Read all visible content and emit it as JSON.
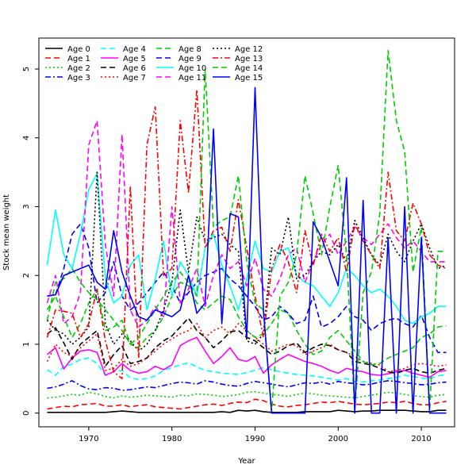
{
  "chart_data": {
    "type": "line",
    "title": "",
    "xlabel": "Year",
    "ylabel": "Stock mean weight",
    "xlim": [
      1964,
      2014
    ],
    "ylim": [
      -0.2,
      5.45
    ],
    "x_ticks": [
      1970,
      1980,
      1990,
      2000,
      2010
    ],
    "y_ticks": [
      0,
      1,
      2,
      3,
      4,
      5
    ],
    "grid": false,
    "legend_position": "top-left",
    "x": [
      1965,
      1966,
      1967,
      1968,
      1969,
      1970,
      1971,
      1972,
      1973,
      1974,
      1975,
      1976,
      1977,
      1978,
      1979,
      1980,
      1981,
      1982,
      1983,
      1984,
      1985,
      1986,
      1987,
      1988,
      1989,
      1990,
      1991,
      1992,
      1993,
      1994,
      1995,
      1996,
      1997,
      1998,
      1999,
      2000,
      2001,
      2002,
      2003,
      2004,
      2005,
      2006,
      2007,
      2008,
      2009,
      2010,
      2011,
      2012,
      2013
    ],
    "series": [
      {
        "name": "Age 0",
        "color": "#000000",
        "dash": "solid",
        "values": [
          0.01,
          0.01,
          0.01,
          0.01,
          0.01,
          0.01,
          0.01,
          0.01,
          0.02,
          0.03,
          0.02,
          0.01,
          0.01,
          0.01,
          0.01,
          0.01,
          0.01,
          0.01,
          0.01,
          0.01,
          0.01,
          0.02,
          0.01,
          0.04,
          0.03,
          0.04,
          0.02,
          0.01,
          0.01,
          0.01,
          0.01,
          0.02,
          0.02,
          0.02,
          0.02,
          0.04,
          0.03,
          0.02,
          0.03,
          0.03,
          0.04,
          0.04,
          0.04,
          0.04,
          0.03,
          0.02,
          0.02,
          0.04,
          0.04
        ]
      },
      {
        "name": "Age 1",
        "color": "#ff0000",
        "dash": "dashed",
        "values": [
          0.06,
          0.08,
          0.1,
          0.09,
          0.12,
          0.13,
          0.14,
          0.1,
          0.1,
          0.12,
          0.09,
          0.11,
          0.12,
          0.09,
          0.08,
          0.07,
          0.06,
          0.08,
          0.1,
          0.12,
          0.13,
          0.11,
          0.14,
          0.16,
          0.15,
          0.2,
          0.18,
          0.13,
          0.1,
          0.09,
          0.11,
          0.12,
          0.14,
          0.16,
          0.15,
          0.17,
          0.15,
          0.13,
          0.12,
          0.13,
          0.14,
          0.16,
          0.15,
          0.17,
          0.14,
          0.12,
          0.12,
          0.15,
          0.17
        ]
      },
      {
        "name": "Age 2",
        "color": "#00cd00",
        "dash": "dotted",
        "values": [
          0.22,
          0.23,
          0.25,
          0.27,
          0.26,
          0.3,
          0.28,
          0.24,
          0.22,
          0.25,
          0.23,
          0.24,
          0.26,
          0.25,
          0.24,
          0.23,
          0.26,
          0.25,
          0.28,
          0.27,
          0.26,
          0.24,
          0.25,
          0.27,
          0.3,
          0.31,
          0.29,
          0.27,
          0.26,
          0.24,
          0.27,
          0.29,
          0.28,
          0.26,
          0.25,
          0.24,
          0.23,
          0.22,
          0.24,
          0.26,
          0.28,
          0.3,
          0.29,
          0.27,
          0.25,
          0.24,
          0.23,
          0.26,
          0.27
        ]
      },
      {
        "name": "Age 3",
        "color": "#0000ff",
        "dash": "dashdot",
        "values": [
          0.36,
          0.38,
          0.42,
          0.47,
          0.4,
          0.35,
          0.34,
          0.37,
          0.36,
          0.33,
          0.34,
          0.36,
          0.38,
          0.37,
          0.4,
          0.43,
          0.45,
          0.44,
          0.42,
          0.47,
          0.45,
          0.42,
          0.4,
          0.39,
          0.43,
          0.46,
          0.44,
          0.42,
          0.4,
          0.38,
          0.41,
          0.44,
          0.43,
          0.45,
          0.42,
          0.46,
          0.44,
          0.43,
          0.41,
          0.42,
          0.45,
          0.47,
          0.46,
          0.44,
          0.43,
          0.41,
          0.42,
          0.44,
          0.45
        ]
      },
      {
        "name": "Age 4",
        "color": "#00ffff",
        "dash": "dashed",
        "values": [
          0.63,
          0.55,
          0.68,
          0.71,
          0.78,
          0.8,
          0.72,
          0.55,
          0.6,
          0.62,
          0.51,
          0.49,
          0.5,
          0.54,
          0.62,
          0.66,
          0.7,
          0.73,
          0.67,
          0.62,
          0.6,
          0.58,
          0.57,
          0.56,
          0.59,
          0.62,
          0.66,
          0.63,
          0.6,
          0.58,
          0.56,
          0.55,
          0.54,
          0.52,
          0.5,
          0.48,
          0.5,
          0.46,
          0.45,
          0.47,
          0.48,
          0.5,
          0.52,
          0.55,
          0.53,
          0.51,
          0.5,
          0.54,
          0.56
        ]
      },
      {
        "name": "Age 5",
        "color": "#ff00ff",
        "dash": "solid",
        "values": [
          0.85,
          0.95,
          0.64,
          0.8,
          0.9,
          0.92,
          0.88,
          0.55,
          0.6,
          0.72,
          0.62,
          0.58,
          0.6,
          0.68,
          0.63,
          0.7,
          0.98,
          1.05,
          1.1,
          0.9,
          0.72,
          0.82,
          0.95,
          0.78,
          0.75,
          0.82,
          0.58,
          0.7,
          0.78,
          0.85,
          0.8,
          0.75,
          0.72,
          0.68,
          0.62,
          0.58,
          0.65,
          0.62,
          0.6,
          0.56,
          0.55,
          0.57,
          0.6,
          0.62,
          0.58,
          0.55,
          0.52,
          0.6,
          0.62
        ]
      },
      {
        "name": "Age 6",
        "color": "#000000",
        "dash": "dashed",
        "values": [
          1.15,
          1.24,
          1.02,
          0.78,
          1.0,
          1.1,
          1.2,
          0.68,
          0.85,
          0.98,
          0.72,
          0.75,
          0.8,
          0.95,
          1.05,
          1.12,
          1.25,
          1.38,
          1.2,
          1.1,
          0.95,
          1.05,
          1.18,
          1.2,
          1.1,
          1.05,
          0.95,
          0.85,
          0.9,
          0.98,
          1.02,
          0.88,
          0.95,
          1.0,
          0.98,
          0.92,
          0.88,
          0.75,
          0.72,
          0.7,
          0.65,
          0.6,
          0.58,
          0.62,
          0.65,
          0.6,
          0.58,
          0.62,
          0.65
        ]
      },
      {
        "name": "Age 7",
        "color": "#ff0000",
        "dash": "dotted",
        "values": [
          0.75,
          1.0,
          0.88,
          0.82,
          0.95,
          1.05,
          1.15,
          0.62,
          0.65,
          0.78,
          0.68,
          0.72,
          0.8,
          0.9,
          1.0,
          1.08,
          1.15,
          1.2,
          1.3,
          1.1,
          1.2,
          1.25,
          1.15,
          1.3,
          1.2,
          1.1,
          1.0,
          0.9,
          0.95,
          1.0,
          0.98,
          0.85,
          0.9,
          0.95,
          1.0,
          0.92,
          0.88,
          0.82,
          0.75,
          0.72,
          0.7,
          0.6,
          0.62,
          0.65,
          0.7,
          0.72,
          0.7,
          0.68,
          0.7
        ]
      },
      {
        "name": "Age 8",
        "color": "#00cd00",
        "dash": "dashed",
        "values": [
          1.5,
          1.7,
          1.4,
          1.1,
          1.3,
          1.6,
          1.8,
          1.2,
          1.25,
          1.35,
          1.0,
          0.95,
          1.1,
          1.2,
          1.4,
          1.7,
          1.9,
          1.85,
          1.6,
          1.5,
          1.6,
          1.7,
          1.65,
          1.4,
          1.2,
          1.1,
          1.15,
          1.3,
          1.5,
          1.45,
          1.2,
          1.0,
          0.85,
          0.9,
          1.1,
          1.2,
          1.05,
          0.9,
          0.75,
          0.7,
          0.72,
          0.8,
          0.85,
          0.9,
          0.95,
          1.1,
          1.15,
          1.25,
          1.27
        ]
      },
      {
        "name": "Age 9",
        "color": "#0000ff",
        "dash": "dashed",
        "values": [
          1.7,
          1.72,
          2.1,
          2.6,
          2.75,
          2.4,
          1.6,
          1.75,
          2.2,
          1.7,
          1.5,
          1.6,
          1.75,
          1.9,
          2.05,
          1.85,
          1.6,
          1.75,
          1.9,
          2.0,
          2.05,
          2.1,
          1.95,
          1.85,
          1.7,
          1.55,
          1.35,
          1.4,
          1.55,
          1.45,
          1.3,
          1.35,
          1.7,
          1.25,
          1.3,
          1.4,
          1.55,
          1.4,
          1.35,
          1.2,
          1.3,
          1.35,
          1.38,
          1.3,
          1.25,
          1.42,
          1.1,
          0.88,
          0.88
        ]
      },
      {
        "name": "Age 10",
        "color": "#00ffff",
        "dash": "solid",
        "values": [
          2.15,
          2.95,
          2.3,
          2.1,
          2.6,
          3.25,
          3.48,
          1.95,
          1.6,
          1.7,
          2.15,
          2.3,
          1.5,
          1.95,
          2.5,
          1.7,
          2.2,
          2.0,
          1.7,
          2.4,
          2.6,
          2.15,
          1.85,
          1.5,
          1.95,
          2.5,
          2.1,
          2.05,
          2.35,
          2.4,
          2.0,
          1.9,
          1.85,
          1.7,
          1.55,
          1.75,
          2.1,
          2.0,
          1.85,
          1.75,
          1.8,
          1.7,
          1.55,
          1.35,
          1.3,
          1.4,
          1.45,
          1.55,
          1.55
        ]
      },
      {
        "name": "Age 11",
        "color": "#ff00ff",
        "dash": "dashed",
        "values": [
          1.6,
          2.0,
          1.3,
          1.4,
          1.75,
          3.9,
          4.25,
          2.45,
          1.7,
          4.05,
          1.5,
          1.25,
          1.35,
          1.55,
          1.4,
          3.0,
          1.6,
          1.8,
          2.1,
          1.55,
          2.0,
          2.3,
          2.1,
          2.2,
          1.85,
          2.25,
          1.8,
          1.7,
          1.95,
          2.3,
          2.4,
          1.9,
          2.2,
          2.45,
          2.6,
          2.3,
          2.5,
          2.7,
          2.55,
          2.45,
          2.6,
          2.75,
          2.55,
          2.4,
          2.5,
          2.35,
          2.2,
          2.2,
          2.2
        ]
      },
      {
        "name": "Age 12",
        "color": "#000000",
        "dash": "dotted",
        "values": [
          1.35,
          1.2,
          1.15,
          1.0,
          1.1,
          1.25,
          3.5,
          1.3,
          1.0,
          1.15,
          1.05,
          0.9,
          1.0,
          1.2,
          1.5,
          1.9,
          2.95,
          2.05,
          2.85,
          2.5,
          2.55,
          2.6,
          2.45,
          2.35,
          1.05,
          1.0,
          1.15,
          2.4,
          2.3,
          2.85,
          1.95,
          2.0,
          2.2,
          2.35,
          2.3,
          2.45,
          2.2,
          2.8,
          2.55,
          2.3,
          2.15,
          2.6,
          2.35,
          2.2,
          2.5,
          2.75,
          2.4,
          2.1,
          2.15
        ]
      },
      {
        "name": "Age 13",
        "color": "#ff0000",
        "dash": "dashdot",
        "values": [
          1.1,
          1.5,
          1.48,
          1.45,
          1.1,
          1.3,
          1.8,
          1.05,
          0.6,
          0.5,
          3.3,
          0.8,
          3.9,
          4.45,
          2.0,
          2.1,
          4.25,
          3.2,
          4.7,
          2.4,
          2.65,
          2.7,
          2.35,
          3.1,
          2.4,
          1.7,
          1.1,
          2.1,
          2.45,
          2.2,
          1.75,
          2.65,
          2.15,
          2.6,
          2.35,
          2.55,
          2.05,
          2.75,
          2.5,
          2.3,
          2.1,
          3.5,
          2.65,
          2.5,
          3.05,
          2.75,
          2.3,
          2.15,
          2.1
        ]
      },
      {
        "name": "Age 14",
        "color": "#00cd00",
        "dash": "dashed",
        "values": [
          1.35,
          1.9,
          1.95,
          2.1,
          1.9,
          1.75,
          1.65,
          1.5,
          1.35,
          1.2,
          1.0,
          1.1,
          1.3,
          1.5,
          1.7,
          1.9,
          2.05,
          1.9,
          1.7,
          5.0,
          2.7,
          2.8,
          2.85,
          3.45,
          2.2,
          1.6,
          1.5,
          0.02,
          1.7,
          1.9,
          2.3,
          3.45,
          2.9,
          2.3,
          3.0,
          3.6,
          2.3,
          0.05,
          1.75,
          2.05,
          2.9,
          5.27,
          4.25,
          3.8,
          2.05,
          2.7,
          0.05,
          2.35,
          2.35
        ]
      },
      {
        "name": "Age 15",
        "color": "#0000ff",
        "dash": "solid",
        "values": [
          1.7,
          1.72,
          2.0,
          2.05,
          2.1,
          2.15,
          1.9,
          1.8,
          2.65,
          2.05,
          1.7,
          1.4,
          1.35,
          1.5,
          1.45,
          1.4,
          1.5,
          2.0,
          1.45,
          1.6,
          4.13,
          1.3,
          2.9,
          2.85,
          1.1,
          4.73,
          1.5,
          0.0,
          0.0,
          0.0,
          0.0,
          0.0,
          2.78,
          2.55,
          2.2,
          1.85,
          3.42,
          0.0,
          3.09,
          0.0,
          0.0,
          2.55,
          0.0,
          3.0,
          0.0,
          2.55,
          0.0,
          0.0,
          0.0
        ]
      }
    ]
  }
}
